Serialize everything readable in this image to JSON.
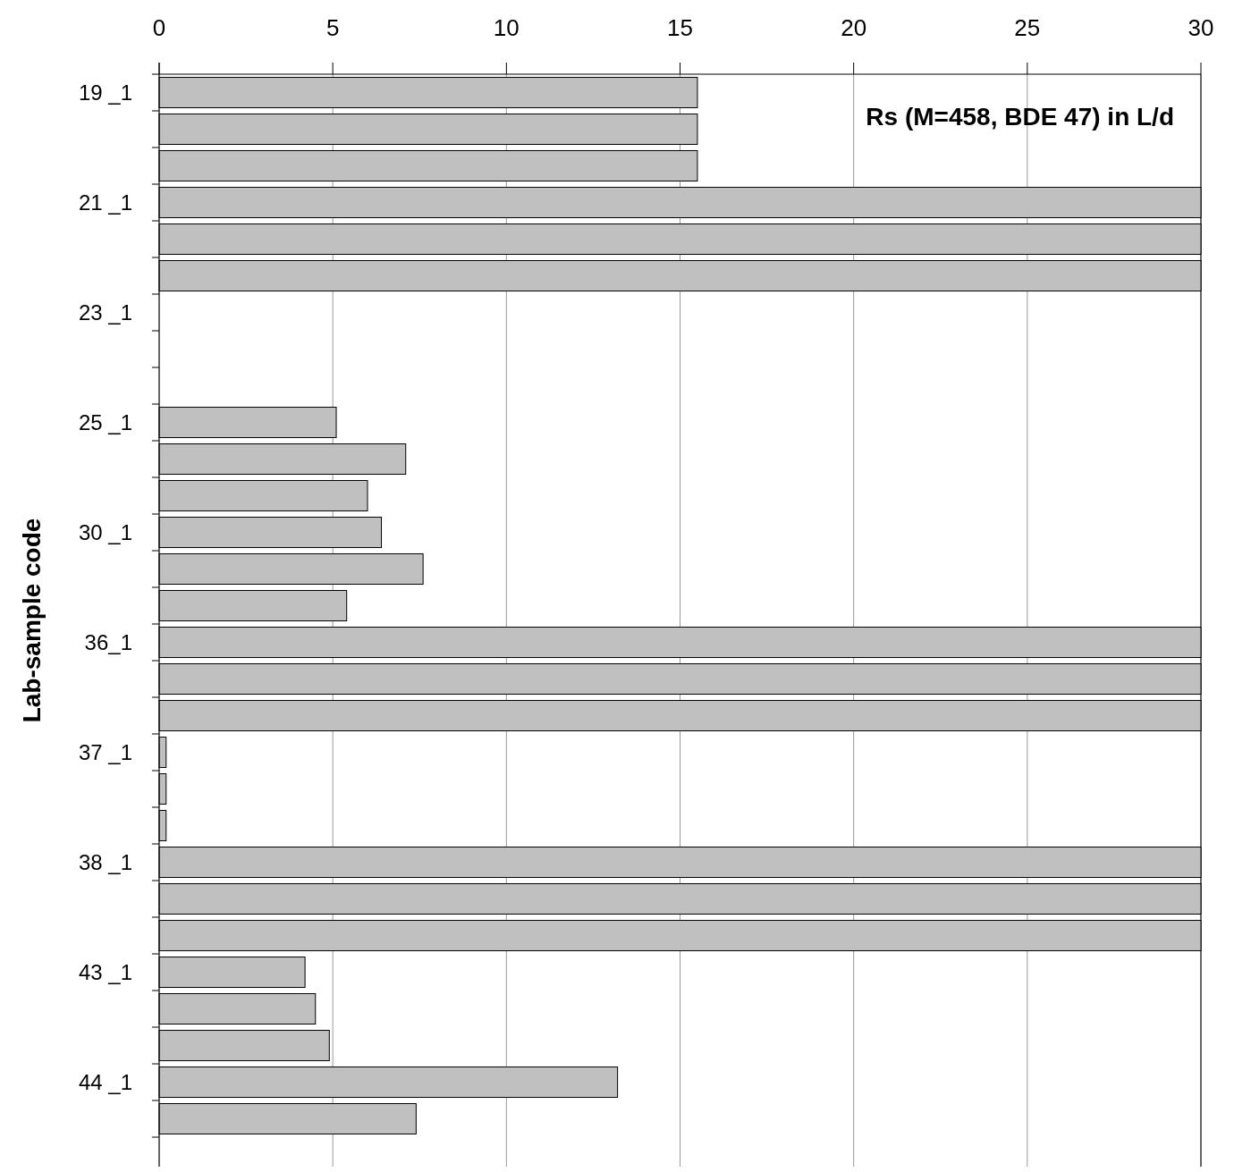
{
  "chart_data": {
    "type": "bar",
    "orientation": "horizontal",
    "title": "Rs (M=458, BDE 47) in L/d",
    "ylabel": "Lab-sample code",
    "categories": [
      "19 _1",
      null,
      null,
      "21 _1",
      null,
      null,
      "23 _1",
      null,
      null,
      "25 _1",
      null,
      null,
      "30 _1",
      null,
      null,
      "36_1",
      null,
      null,
      "37 _1",
      null,
      null,
      "38 _1",
      null,
      null,
      "43 _1",
      null,
      null,
      "44 _1",
      null
    ],
    "values": [
      15.5,
      15.5,
      15.5,
      30,
      30,
      30,
      null,
      null,
      null,
      5.1,
      7.1,
      6.0,
      6.4,
      7.6,
      5.4,
      30,
      30,
      30,
      0.2,
      0.2,
      0.2,
      30,
      30,
      30,
      4.2,
      4.5,
      4.9,
      13.2,
      7.4
    ],
    "color": "#c0c0c0",
    "xlim": [
      0,
      30
    ],
    "xticks": [
      0,
      5,
      10,
      15,
      20,
      25,
      30
    ],
    "grid": "x"
  }
}
